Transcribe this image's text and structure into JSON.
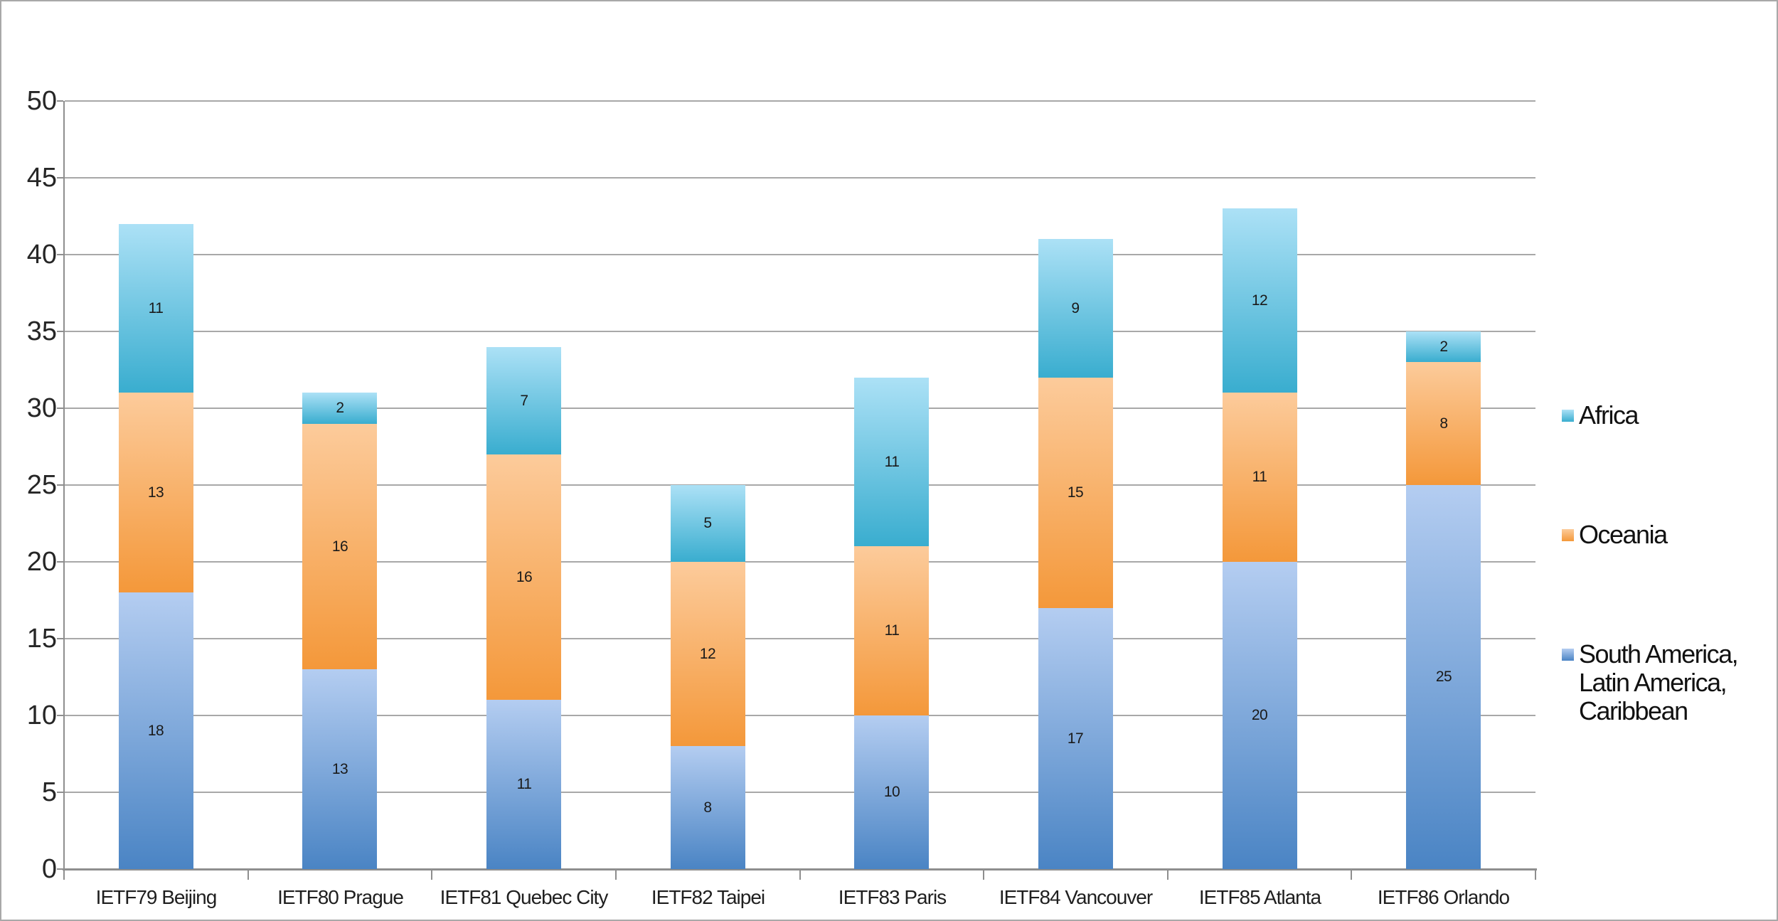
{
  "chart_data": {
    "type": "bar",
    "stacked": true,
    "title": "",
    "categories": [
      "IETF79 Beijing",
      "IETF80 Prague",
      "IETF81 Quebec City",
      "IETF82 Taipei",
      "IETF83 Paris",
      "IETF84 Vancouver",
      "IETF85 Atlanta",
      "IETF86 Orlando"
    ],
    "series": [
      {
        "name": "South America, Latin America, Caribbean",
        "values": [
          18,
          13,
          11,
          8,
          10,
          17,
          20,
          25
        ],
        "color_top": "#B4CDF1",
        "color_bottom": "#4A84C4"
      },
      {
        "name": "Oceania",
        "values": [
          13,
          16,
          16,
          12,
          11,
          15,
          11,
          8
        ],
        "color_top": "#FCCB9B",
        "color_bottom": "#F4983A"
      },
      {
        "name": "Africa",
        "values": [
          11,
          2,
          7,
          5,
          11,
          9,
          12,
          2
        ],
        "color_top": "#ACE1F6",
        "color_bottom": "#39ADCF"
      }
    ],
    "totals": [
      42,
      31,
      34,
      25,
      32,
      41,
      43,
      35
    ],
    "xlabel": "",
    "ylabel": "",
    "ylim": [
      0,
      50
    ],
    "yticks": [
      0,
      5,
      10,
      15,
      20,
      25,
      30,
      35,
      40,
      45,
      50
    ],
    "grid": true,
    "data_labels": true,
    "legend_position": "right",
    "legend": [
      {
        "label": "Africa",
        "series_index": 2
      },
      {
        "label": "Oceania",
        "series_index": 1
      },
      {
        "label": "South America, Latin America, Caribbean",
        "series_index": 0
      }
    ]
  },
  "colors": {
    "background": "#ffffff",
    "page_border": "#a9a9a9",
    "gridline": "#a8a8a8",
    "axis": "#8e8e8e",
    "axis_text": "#262626",
    "data_label_text": "#1a1a1a",
    "legend_text": "#111111"
  }
}
